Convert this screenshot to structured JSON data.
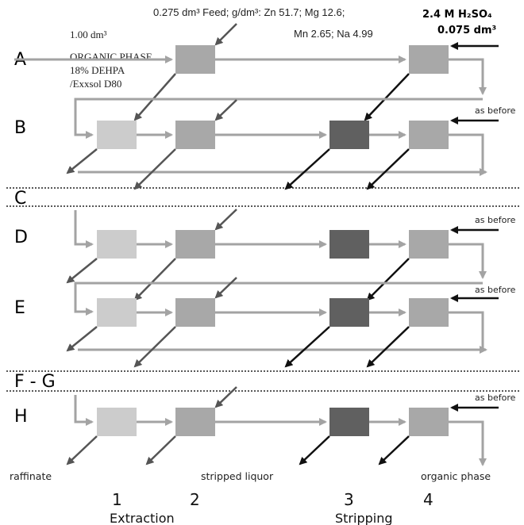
{
  "feed": {
    "text": "0.275 dm³ Feed; g/dm³: Zn 51.7; Mg 12.6;",
    "text2": "Mn 2.65; Na 4.99"
  },
  "organic": {
    "volume": "1.00 dm³",
    "lines": [
      "ORGANIC PHASE",
      "18% DEHPA",
      "/Exxsol D80"
    ]
  },
  "acid": {
    "line1": "2.4 M H₂SO₄",
    "line2": "0.075 dm³"
  },
  "rows": [
    "A",
    "B",
    "C",
    "D",
    "E",
    "F - G",
    "H"
  ],
  "as_before": "as before",
  "bottom_labels": {
    "raffinate": "raffinate",
    "stripped": "stripped liquor",
    "organic": "organic phase"
  },
  "stages": [
    "1",
    "2",
    "3",
    "4"
  ],
  "groups": {
    "extraction": "Extraction",
    "stripping": "Stripping"
  },
  "colors": {
    "light": "#cccccc",
    "mid": "#a8a8a8",
    "dark": "#606060",
    "flow": "#a3a3a3"
  }
}
